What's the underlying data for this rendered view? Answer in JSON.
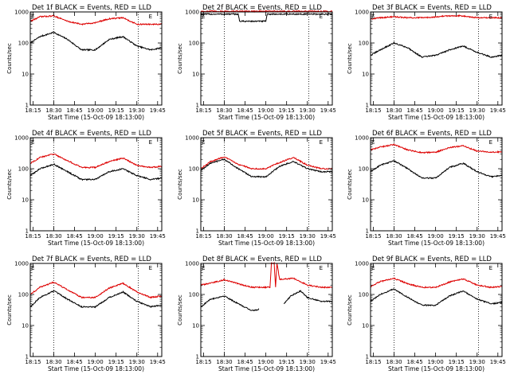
{
  "chart_data": [
    {
      "type": "line",
      "title": "Det 1f BLACK = Events, RED = LLD",
      "xlabel": "Start Time (15-Oct-09 18:13:00)",
      "ylabel": "Counts/sec",
      "x_ticks": [
        "18:15",
        "18:30",
        "18:45",
        "19:00",
        "19:15",
        "19:30",
        "19:45"
      ],
      "y_ticks": [
        "1",
        "10",
        "100",
        "1000"
      ],
      "yscale": "log",
      "ylim": [
        1,
        1000
      ],
      "xlim_minutes": [
        13,
        108
      ],
      "markers": [
        {
          "label": "E",
          "minute": 13
        },
        {
          "label": "E",
          "minute": 98
        }
      ],
      "vlines_minutes": [
        30,
        91
      ],
      "series": [
        {
          "color": "#000000",
          "minutes": [
            13,
            20,
            30,
            40,
            50,
            60,
            70,
            80,
            90,
            100,
            108
          ],
          "values": [
            100,
            160,
            220,
            130,
            60,
            60,
            130,
            160,
            80,
            60,
            70
          ]
        },
        {
          "color": "#dd0000",
          "minutes": [
            13,
            20,
            30,
            40,
            50,
            60,
            70,
            80,
            90,
            100,
            108
          ],
          "values": [
            500,
            700,
            750,
            500,
            400,
            450,
            600,
            650,
            400,
            400,
            400
          ]
        }
      ]
    },
    {
      "type": "line",
      "title": "Det 2f BLACK = Events, RED = LLD",
      "xlabel": "Start Time (15-Oct-09 18:13:00)",
      "ylabel": "Counts/sec",
      "x_ticks": [
        "18:15",
        "18:30",
        "18:45",
        "19:00",
        "19:15",
        "19:30",
        "19:45"
      ],
      "y_ticks": [
        "1",
        "10",
        "100",
        "1000"
      ],
      "yscale": "log",
      "ylim": [
        1,
        1000
      ],
      "xlim_minutes": [
        13,
        108
      ],
      "markers": [
        {
          "label": "E",
          "minute": 13
        },
        {
          "label": "E",
          "minute": 98
        }
      ],
      "vlines_minutes": [
        30,
        91
      ],
      "series": [
        {
          "color": "#000000",
          "minutes": [
            13,
            20,
            30,
            40,
            41,
            60,
            61,
            70,
            80,
            90,
            100,
            108
          ],
          "values": [
            850,
            850,
            850,
            850,
            500,
            500,
            850,
            850,
            850,
            850,
            850,
            850
          ]
        },
        {
          "color": "#dd0000",
          "minutes": [
            13,
            20,
            30,
            40,
            50,
            60,
            70,
            80,
            90,
            100,
            108
          ],
          "values": [
            1050,
            1050,
            1050,
            1050,
            1050,
            1050,
            1050,
            1050,
            1050,
            1050,
            1050
          ]
        }
      ]
    },
    {
      "type": "line",
      "title": "Det 3f BLACK = Events, RED = LLD",
      "xlabel": "Start Time (15-Oct-09 18:13:00)",
      "ylabel": "Counts/sec",
      "x_ticks": [
        "18:15",
        "18:30",
        "18:45",
        "19:00",
        "19:15",
        "19:30",
        "19:45"
      ],
      "y_ticks": [
        "1",
        "10",
        "100",
        "1000"
      ],
      "yscale": "log",
      "ylim": [
        1,
        1000
      ],
      "xlim_minutes": [
        13,
        108
      ],
      "markers": [
        {
          "label": "E",
          "minute": 13
        },
        {
          "label": "E",
          "minute": 98
        }
      ],
      "vlines_minutes": [
        30,
        91
      ],
      "series": [
        {
          "color": "#000000",
          "minutes": [
            13,
            20,
            30,
            40,
            50,
            60,
            70,
            80,
            90,
            100,
            108
          ],
          "values": [
            40,
            60,
            100,
            70,
            35,
            40,
            60,
            80,
            50,
            35,
            40
          ]
        },
        {
          "color": "#dd0000",
          "minutes": [
            13,
            20,
            30,
            40,
            50,
            60,
            70,
            80,
            90,
            100,
            108
          ],
          "values": [
            600,
            650,
            700,
            650,
            650,
            700,
            750,
            750,
            650,
            650,
            650
          ]
        }
      ]
    },
    {
      "type": "line",
      "title": "Det 4f BLACK = Events, RED = LLD",
      "xlabel": "Start Time (15-Oct-09 18:13:00)",
      "ylabel": "Counts/sec",
      "x_ticks": [
        "18:15",
        "18:30",
        "18:45",
        "19:00",
        "19:15",
        "19:30",
        "19:45"
      ],
      "y_ticks": [
        "1",
        "10",
        "100",
        "1000"
      ],
      "yscale": "log",
      "ylim": [
        1,
        1000
      ],
      "xlim_minutes": [
        13,
        108
      ],
      "markers": [
        {
          "label": "E",
          "minute": 13
        },
        {
          "label": "E",
          "minute": 98
        }
      ],
      "vlines_minutes": [
        30,
        91
      ],
      "series": [
        {
          "color": "#000000",
          "minutes": [
            13,
            20,
            30,
            40,
            50,
            60,
            70,
            80,
            90,
            100,
            108
          ],
          "values": [
            60,
            100,
            140,
            80,
            45,
            45,
            80,
            100,
            60,
            45,
            50
          ]
        },
        {
          "color": "#dd0000",
          "minutes": [
            13,
            20,
            30,
            40,
            50,
            60,
            70,
            80,
            90,
            100,
            108
          ],
          "values": [
            150,
            230,
            300,
            180,
            110,
            110,
            170,
            220,
            130,
            110,
            120
          ]
        }
      ]
    },
    {
      "type": "line",
      "title": "Det 5f BLACK = Events, RED = LLD",
      "xlabel": "Start Time (15-Oct-09 18:13:00)",
      "ylabel": "Counts/sec",
      "x_ticks": [
        "18:15",
        "18:30",
        "18:45",
        "19:00",
        "19:15",
        "19:30",
        "19:45"
      ],
      "y_ticks": [
        "1",
        "10",
        "100",
        "1000"
      ],
      "yscale": "log",
      "ylim": [
        1,
        1000
      ],
      "xlim_minutes": [
        13,
        108
      ],
      "markers": [
        {
          "label": "E",
          "minute": 13
        },
        {
          "label": "E",
          "minute": 98
        }
      ],
      "vlines_minutes": [
        30,
        91
      ],
      "series": [
        {
          "color": "#000000",
          "minutes": [
            13,
            20,
            30,
            40,
            50,
            60,
            70,
            80,
            90,
            100,
            108
          ],
          "values": [
            90,
            150,
            200,
            100,
            55,
            55,
            120,
            170,
            100,
            80,
            80
          ]
        },
        {
          "color": "#dd0000",
          "minutes": [
            13,
            20,
            30,
            40,
            50,
            60,
            70,
            80,
            90,
            100,
            108
          ],
          "values": [
            100,
            170,
            240,
            140,
            100,
            100,
            160,
            230,
            130,
            100,
            100
          ]
        }
      ]
    },
    {
      "type": "line",
      "title": "Det 6f BLACK = Events, RED = LLD",
      "xlabel": "Start Time (15-Oct-09 18:13:00)",
      "ylabel": "Counts/sec",
      "x_ticks": [
        "18:15",
        "18:30",
        "18:45",
        "19:00",
        "19:15",
        "19:30",
        "19:45"
      ],
      "y_ticks": [
        "1",
        "10",
        "100",
        "1000"
      ],
      "yscale": "log",
      "ylim": [
        1,
        1000
      ],
      "xlim_minutes": [
        13,
        108
      ],
      "markers": [
        {
          "label": "E",
          "minute": 13
        },
        {
          "label": "E",
          "minute": 98
        }
      ],
      "vlines_minutes": [
        30,
        91
      ],
      "series": [
        {
          "color": "#000000",
          "minutes": [
            13,
            20,
            30,
            40,
            50,
            60,
            70,
            80,
            90,
            100,
            108
          ],
          "values": [
            80,
            130,
            180,
            100,
            50,
            50,
            110,
            150,
            80,
            55,
            60
          ]
        },
        {
          "color": "#dd0000",
          "minutes": [
            13,
            20,
            30,
            40,
            50,
            60,
            70,
            80,
            90,
            100,
            108
          ],
          "values": [
            400,
            500,
            600,
            400,
            330,
            340,
            480,
            550,
            370,
            340,
            350
          ]
        }
      ]
    },
    {
      "type": "line",
      "title": "Det 7f BLACK = Events, RED = LLD",
      "xlabel": "Start Time (15-Oct-09 18:13:00)",
      "ylabel": "Counts/sec",
      "x_ticks": [
        "18:15",
        "18:30",
        "18:45",
        "19:00",
        "19:15",
        "19:30",
        "19:45"
      ],
      "y_ticks": [
        "1",
        "10",
        "100",
        "1000"
      ],
      "yscale": "log",
      "ylim": [
        1,
        1000
      ],
      "xlim_minutes": [
        13,
        108
      ],
      "markers": [
        {
          "label": "E",
          "minute": 13
        },
        {
          "label": "E",
          "minute": 98
        }
      ],
      "vlines_minutes": [
        30,
        91
      ],
      "series": [
        {
          "color": "#000000",
          "minutes": [
            13,
            20,
            30,
            40,
            50,
            60,
            70,
            80,
            90,
            100,
            108
          ],
          "values": [
            40,
            80,
            130,
            70,
            40,
            40,
            80,
            120,
            60,
            40,
            45
          ]
        },
        {
          "color": "#dd0000",
          "minutes": [
            13,
            20,
            30,
            40,
            50,
            60,
            70,
            80,
            90,
            100,
            108
          ],
          "values": [
            100,
            170,
            250,
            140,
            80,
            80,
            160,
            230,
            120,
            80,
            90
          ]
        }
      ]
    },
    {
      "type": "line",
      "title": "Det 8f BLACK = Events, RED = LLD",
      "xlabel": "Start Time (15-Oct-09 18:13:00)",
      "ylabel": "Counts/sec",
      "x_ticks": [
        "18:15",
        "18:30",
        "18:45",
        "19:00",
        "19:15",
        "19:30",
        "19:45"
      ],
      "y_ticks": [
        "1",
        "10",
        "100",
        "1000"
      ],
      "yscale": "log",
      "ylim": [
        1,
        1000
      ],
      "xlim_minutes": [
        13,
        108
      ],
      "markers": [
        {
          "label": "E",
          "minute": 13
        },
        {
          "label": "E",
          "minute": 98
        }
      ],
      "vlines_minutes": [
        30,
        91
      ],
      "series": [
        {
          "color": "#000000",
          "minutes": [
            13,
            20,
            30,
            40,
            50,
            55
          ],
          "values": [
            40,
            70,
            90,
            50,
            30,
            33
          ]
        },
        {
          "color": "#000000",
          "minutes": [
            73,
            78,
            85,
            90,
            100,
            108
          ],
          "values": [
            50,
            90,
            130,
            80,
            60,
            60
          ]
        },
        {
          "color": "#dd0000",
          "minutes": [
            13,
            20,
            30,
            40,
            50,
            60,
            63,
            64,
            66,
            67,
            68,
            70,
            80,
            90,
            100,
            108
          ],
          "values": [
            200,
            230,
            300,
            220,
            170,
            170,
            170,
            1000,
            1000,
            170,
            1000,
            300,
            330,
            200,
            170,
            170
          ]
        }
      ]
    },
    {
      "type": "line",
      "title": "Det 9f BLACK = Events, RED = LLD",
      "xlabel": "Start Time (15-Oct-09 18:13:00)",
      "ylabel": "Counts/sec",
      "x_ticks": [
        "18:15",
        "18:30",
        "18:45",
        "19:00",
        "19:15",
        "19:30",
        "19:45"
      ],
      "y_ticks": [
        "1",
        "10",
        "100",
        "1000"
      ],
      "yscale": "log",
      "ylim": [
        1,
        1000
      ],
      "xlim_minutes": [
        13,
        108
      ],
      "markers": [
        {
          "label": "E",
          "minute": 13
        },
        {
          "label": "E",
          "minute": 98
        }
      ],
      "vlines_minutes": [
        30,
        91
      ],
      "series": [
        {
          "color": "#000000",
          "minutes": [
            13,
            20,
            30,
            40,
            50,
            60,
            70,
            80,
            90,
            100,
            108
          ],
          "values": [
            60,
            100,
            150,
            80,
            45,
            45,
            90,
            130,
            70,
            50,
            55
          ]
        },
        {
          "color": "#dd0000",
          "minutes": [
            13,
            20,
            30,
            40,
            50,
            60,
            70,
            80,
            90,
            100,
            108
          ],
          "values": [
            180,
            260,
            330,
            220,
            170,
            170,
            250,
            320,
            200,
            170,
            180
          ]
        }
      ]
    }
  ]
}
